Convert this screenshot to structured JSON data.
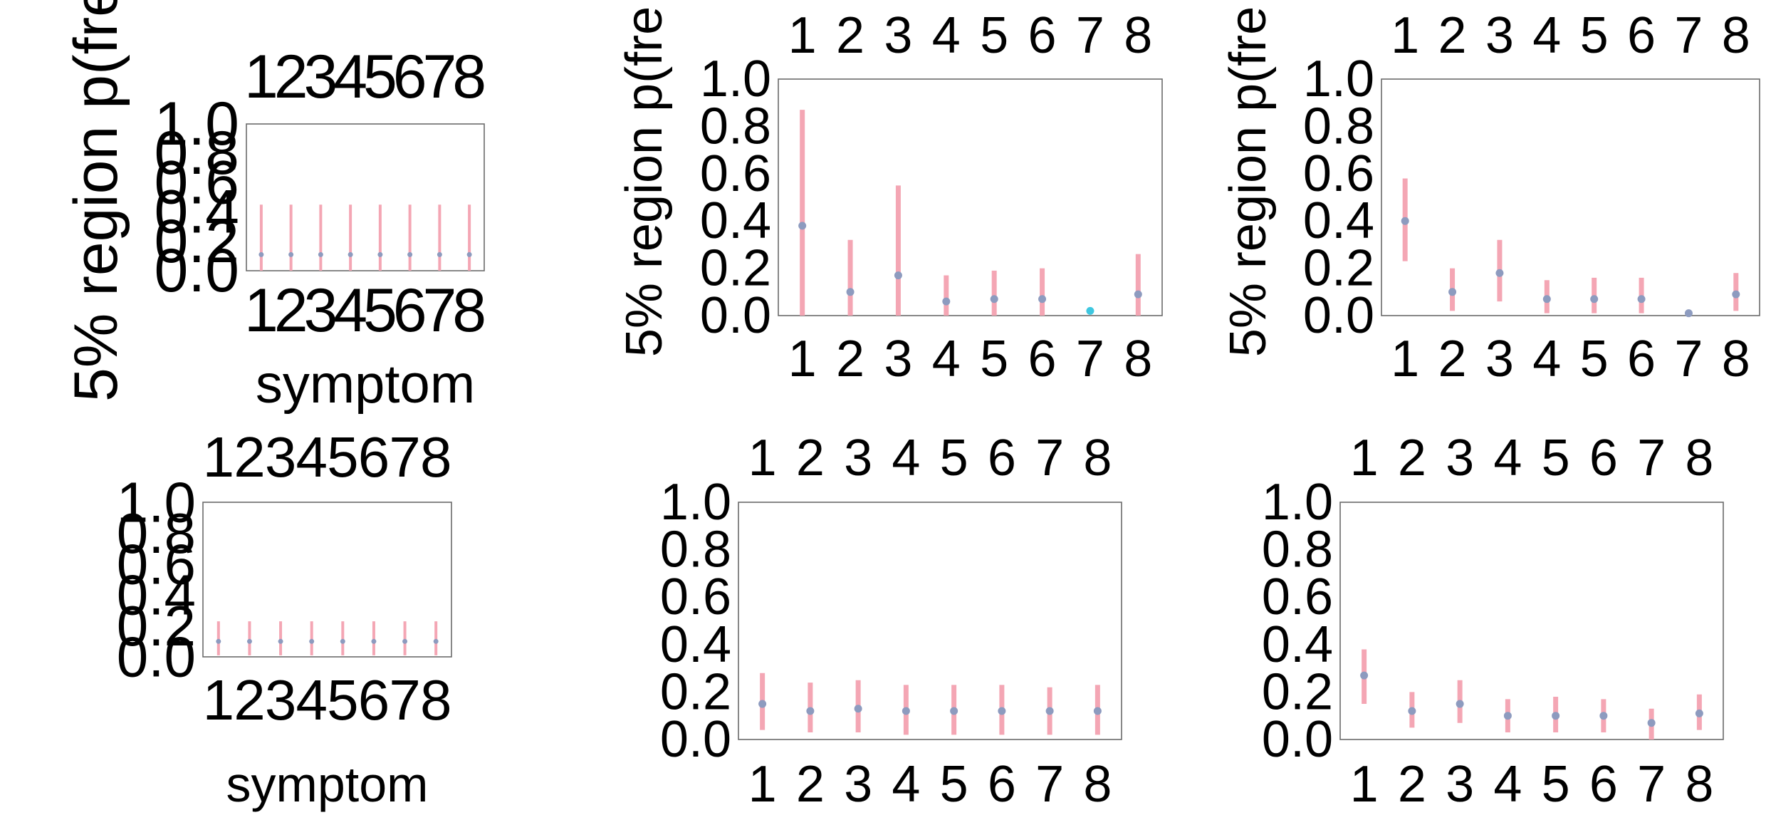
{
  "figure": {
    "colors": {
      "interval": "#f4a6b4",
      "point": "#8d9bbf",
      "point_highlight": "#3ec7e0",
      "frame": "#6a6a6a",
      "text": "#000000"
    }
  },
  "chart_data": [
    {
      "type": "scatter",
      "panel": "top-left",
      "title": "",
      "categories": [
        "1",
        "2",
        "3",
        "4",
        "5",
        "6",
        "7",
        "8"
      ],
      "ylabel": "5% region p(fre",
      "xlabel": "symptom",
      "yticks": [
        "0.0",
        "0.2",
        "0.4",
        "0.6",
        "0.8",
        "1.0"
      ],
      "ylim": [
        0,
        1
      ],
      "series": [
        {
          "values": [
            0.11,
            0.11,
            0.11,
            0.11,
            0.11,
            0.11,
            0.11,
            0.11
          ],
          "lower": [
            0.0,
            0.0,
            0.0,
            0.0,
            0.0,
            0.0,
            0.0,
            0.0
          ],
          "upper": [
            0.45,
            0.45,
            0.45,
            0.45,
            0.45,
            0.45,
            0.45,
            0.45
          ]
        }
      ]
    },
    {
      "type": "scatter",
      "panel": "top-middle",
      "title": "",
      "categories": [
        "1",
        "2",
        "3",
        "4",
        "5",
        "6",
        "7",
        "8"
      ],
      "ylabel": "5% region p(fre",
      "xlabel": "",
      "yticks": [
        "0.0",
        "0.2",
        "0.4",
        "0.6",
        "0.8",
        "1.0"
      ],
      "ylim": [
        0,
        1
      ],
      "series": [
        {
          "values": [
            0.38,
            0.1,
            0.17,
            0.06,
            0.07,
            0.07,
            0.02,
            0.09
          ],
          "lower": [
            0.0,
            0.0,
            0.0,
            0.0,
            0.0,
            0.0,
            0.0,
            0.0
          ],
          "upper": [
            0.87,
            0.32,
            0.55,
            0.17,
            0.19,
            0.2,
            0.0,
            0.26
          ]
        }
      ]
    },
    {
      "type": "scatter",
      "panel": "top-right",
      "title": "",
      "categories": [
        "1",
        "2",
        "3",
        "4",
        "5",
        "6",
        "7",
        "8"
      ],
      "ylabel": "5% region p(fre",
      "xlabel": "",
      "yticks": [
        "0.0",
        "0.2",
        "0.4",
        "0.6",
        "0.8",
        "1.0"
      ],
      "ylim": [
        0,
        1
      ],
      "series": [
        {
          "values": [
            0.4,
            0.1,
            0.18,
            0.07,
            0.07,
            0.07,
            0.01,
            0.09
          ],
          "lower": [
            0.23,
            0.02,
            0.06,
            0.01,
            0.01,
            0.01,
            0.0,
            0.02
          ],
          "upper": [
            0.58,
            0.2,
            0.32,
            0.15,
            0.16,
            0.16,
            0.02,
            0.18
          ]
        }
      ]
    },
    {
      "type": "scatter",
      "panel": "bottom-left",
      "title": "",
      "categories": [
        "1",
        "2",
        "3",
        "4",
        "5",
        "6",
        "7",
        "8"
      ],
      "xlabel": "symptom",
      "yticks": [
        "0.0",
        "0.2",
        "0.4",
        "0.6",
        "0.8",
        "1.0"
      ],
      "ylim": [
        0,
        1
      ],
      "series": [
        {
          "values": [
            0.1,
            0.1,
            0.1,
            0.1,
            0.1,
            0.1,
            0.1,
            0.1
          ],
          "lower": [
            0.01,
            0.01,
            0.01,
            0.01,
            0.01,
            0.01,
            0.01,
            0.01
          ],
          "upper": [
            0.23,
            0.23,
            0.23,
            0.23,
            0.23,
            0.23,
            0.23,
            0.23
          ]
        }
      ]
    },
    {
      "type": "scatter",
      "panel": "bottom-middle",
      "title": "",
      "categories": [
        "1",
        "2",
        "3",
        "4",
        "5",
        "6",
        "7",
        "8"
      ],
      "xlabel": "",
      "yticks": [
        "0.0",
        "0.2",
        "0.4",
        "0.6",
        "0.8",
        "1.0"
      ],
      "ylim": [
        0,
        1
      ],
      "series": [
        {
          "values": [
            0.15,
            0.12,
            0.13,
            0.12,
            0.12,
            0.12,
            0.12,
            0.12
          ],
          "lower": [
            0.04,
            0.03,
            0.03,
            0.02,
            0.02,
            0.02,
            0.02,
            0.02
          ],
          "upper": [
            0.28,
            0.24,
            0.25,
            0.23,
            0.23,
            0.23,
            0.22,
            0.23
          ]
        }
      ]
    },
    {
      "type": "scatter",
      "panel": "bottom-right",
      "title": "",
      "categories": [
        "1",
        "2",
        "3",
        "4",
        "5",
        "6",
        "7",
        "8"
      ],
      "xlabel": "",
      "yticks": [
        "0.0",
        "0.2",
        "0.4",
        "0.6",
        "0.8",
        "1.0"
      ],
      "ylim": [
        0,
        1
      ],
      "series": [
        {
          "values": [
            0.27,
            0.12,
            0.15,
            0.1,
            0.1,
            0.1,
            0.07,
            0.11
          ],
          "lower": [
            0.15,
            0.05,
            0.07,
            0.03,
            0.03,
            0.03,
            0.0,
            0.04
          ],
          "upper": [
            0.38,
            0.2,
            0.25,
            0.17,
            0.18,
            0.17,
            0.13,
            0.19
          ]
        }
      ]
    }
  ]
}
